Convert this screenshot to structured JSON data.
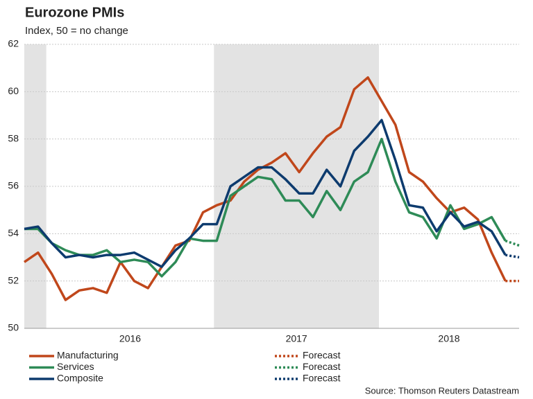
{
  "chart_data": {
    "type": "line",
    "title": "Eurozone PMIs",
    "subtitle": "Index, 50 = no change",
    "source": "Source: Thomson Reuters Datastream",
    "x": [
      0,
      1,
      2,
      3,
      4,
      5,
      6,
      7,
      8,
      9,
      10,
      11,
      12,
      13,
      14,
      15,
      16,
      17,
      18,
      19,
      20,
      21,
      22,
      23,
      24,
      25,
      26,
      27,
      28,
      29,
      30,
      31,
      32,
      33,
      34,
      35,
      36
    ],
    "xlim": [
      0,
      36
    ],
    "xticks": [
      {
        "value": 7.7,
        "label": "2016"
      },
      {
        "value": 19.8,
        "label": "2017"
      },
      {
        "value": 30.9,
        "label": "2018"
      }
    ],
    "shaded_x": [
      [
        0,
        1.6
      ],
      [
        13.8,
        25.8
      ]
    ],
    "ylim": [
      50,
      62
    ],
    "yticks": [
      50,
      52,
      54,
      56,
      58,
      60,
      62
    ],
    "grid": true,
    "series": [
      {
        "name": "Manufacturing",
        "color": "#c0471b",
        "dashed": false,
        "values": [
          52.8,
          53.2,
          52.3,
          51.2,
          51.6,
          51.7,
          51.5,
          52.8,
          52.0,
          51.7,
          52.6,
          53.5,
          53.7,
          54.9,
          55.2,
          55.4,
          56.2,
          56.7,
          57.0,
          57.4,
          56.6,
          57.4,
          58.1,
          58.5,
          60.1,
          60.6,
          59.6,
          58.6,
          56.6,
          56.2,
          55.5,
          54.9,
          55.1,
          54.6,
          53.2,
          52.0,
          null
        ]
      },
      {
        "name": "Services",
        "color": "#2e8b57",
        "dashed": false,
        "values": [
          54.2,
          54.2,
          53.6,
          53.3,
          53.1,
          53.1,
          53.3,
          52.8,
          52.9,
          52.8,
          52.2,
          52.8,
          53.8,
          53.7,
          53.7,
          55.6,
          56.0,
          56.4,
          56.3,
          55.4,
          55.4,
          54.7,
          55.8,
          55.0,
          56.2,
          56.6,
          58.0,
          56.2,
          54.9,
          54.7,
          53.8,
          55.2,
          54.2,
          54.4,
          54.7,
          53.7,
          null
        ]
      },
      {
        "name": "Composite",
        "color": "#0d3b6e",
        "dashed": false,
        "values": [
          54.2,
          54.3,
          53.6,
          53.0,
          53.1,
          53.0,
          53.1,
          53.1,
          53.2,
          52.9,
          52.6,
          53.3,
          53.8,
          54.4,
          54.4,
          56.0,
          56.4,
          56.8,
          56.8,
          56.3,
          55.7,
          55.7,
          56.7,
          56.0,
          57.5,
          58.1,
          58.8,
          57.1,
          55.2,
          55.1,
          54.1,
          54.9,
          54.3,
          54.5,
          54.1,
          53.1,
          null
        ]
      },
      {
        "name": "Forecast",
        "color": "#c0471b",
        "dashed": true,
        "values": [
          null,
          null,
          null,
          null,
          null,
          null,
          null,
          null,
          null,
          null,
          null,
          null,
          null,
          null,
          null,
          null,
          null,
          null,
          null,
          null,
          null,
          null,
          null,
          null,
          null,
          null,
          null,
          null,
          null,
          null,
          null,
          null,
          null,
          null,
          null,
          52.0,
          52.0
        ]
      },
      {
        "name": "Forecast",
        "color": "#2e8b57",
        "dashed": true,
        "values": [
          null,
          null,
          null,
          null,
          null,
          null,
          null,
          null,
          null,
          null,
          null,
          null,
          null,
          null,
          null,
          null,
          null,
          null,
          null,
          null,
          null,
          null,
          null,
          null,
          null,
          null,
          null,
          null,
          null,
          null,
          null,
          null,
          null,
          null,
          null,
          53.7,
          53.5
        ]
      },
      {
        "name": "Forecast",
        "color": "#0d3b6e",
        "dashed": true,
        "values": [
          null,
          null,
          null,
          null,
          null,
          null,
          null,
          null,
          null,
          null,
          null,
          null,
          null,
          null,
          null,
          null,
          null,
          null,
          null,
          null,
          null,
          null,
          null,
          null,
          null,
          null,
          null,
          null,
          null,
          null,
          null,
          null,
          null,
          null,
          null,
          53.1,
          53.0
        ]
      }
    ]
  }
}
